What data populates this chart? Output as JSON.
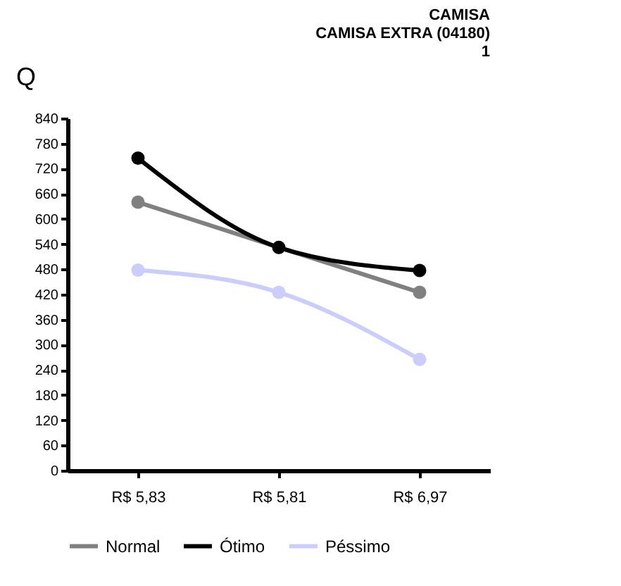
{
  "chart_data": {
    "type": "line",
    "title": [
      "CAMISA",
      "CAMISA EXTRA (04180)",
      "1"
    ],
    "ylabel": "Q",
    "categories": [
      "R$ 5,83",
      "R$ 5,81",
      "R$ 6,97"
    ],
    "series": [
      {
        "name": "Normal",
        "color": "#808080",
        "values": [
          640,
          532,
          425
        ]
      },
      {
        "name": "Ótimo",
        "color": "#000000",
        "values": [
          745,
          532,
          477
        ]
      },
      {
        "name": "Péssimo",
        "color": "#ccccff",
        "values": [
          478,
          425,
          265
        ]
      }
    ],
    "ylim": [
      0,
      840
    ],
    "yticks": [
      0,
      60,
      120,
      180,
      240,
      300,
      360,
      420,
      480,
      540,
      600,
      660,
      720,
      780,
      840
    ],
    "grid": false,
    "legend": "bottom",
    "marker": "circle",
    "line_style": "solid"
  }
}
